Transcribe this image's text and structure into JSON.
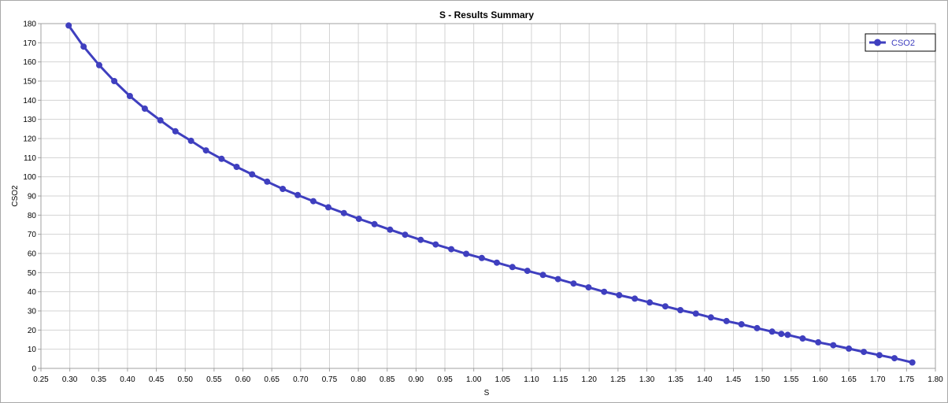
{
  "chart_data": {
    "type": "line",
    "title": "S - Results Summary",
    "xlabel": "S",
    "ylabel": "CSO2",
    "xlim": [
      0.25,
      1.8
    ],
    "ylim": [
      0,
      180
    ],
    "x_ticks": [
      "0.25",
      "0.30",
      "0.35",
      "0.40",
      "0.45",
      "0.50",
      "0.55",
      "0.60",
      "0.65",
      "0.70",
      "0.75",
      "0.80",
      "0.85",
      "0.90",
      "0.95",
      "1.00",
      "1.05",
      "1.10",
      "1.15",
      "1.20",
      "1.25",
      "1.30",
      "1.35",
      "1.40",
      "1.45",
      "1.50",
      "1.55",
      "1.60",
      "1.65",
      "1.70",
      "1.75",
      "1.80"
    ],
    "y_ticks": [
      "0",
      "10",
      "20",
      "30",
      "40",
      "50",
      "60",
      "70",
      "80",
      "90",
      "100",
      "110",
      "120",
      "130",
      "140",
      "150",
      "160",
      "170",
      "180"
    ],
    "grid": true,
    "legend_position": "top-right",
    "series_color": "#3f3fbf",
    "series": [
      {
        "name": "CSO2",
        "x": [
          0.298,
          0.324,
          0.351,
          0.377,
          0.404,
          0.43,
          0.457,
          0.483,
          0.51,
          0.536,
          0.563,
          0.589,
          0.616,
          0.642,
          0.669,
          0.695,
          0.722,
          0.748,
          0.775,
          0.801,
          0.828,
          0.855,
          0.881,
          0.908,
          0.934,
          0.961,
          0.987,
          1.014,
          1.04,
          1.067,
          1.093,
          1.12,
          1.146,
          1.173,
          1.199,
          1.226,
          1.252,
          1.279,
          1.305,
          1.332,
          1.358,
          1.385,
          1.411,
          1.438,
          1.464,
          1.491,
          1.517,
          1.533,
          1.544,
          1.57,
          1.597,
          1.623,
          1.65,
          1.676,
          1.703,
          1.729,
          1.76
        ],
        "values": [
          179,
          168,
          158.3,
          150,
          142.2,
          135.6,
          129.5,
          123.8,
          118.8,
          113.8,
          109.4,
          105.2,
          101.3,
          97.5,
          93.7,
          90.5,
          87.3,
          84.1,
          81.1,
          78.1,
          75.3,
          72.4,
          69.8,
          67.1,
          64.7,
          62.2,
          59.8,
          57.6,
          55.2,
          52.9,
          50.9,
          48.8,
          46.6,
          44.3,
          42.3,
          40.0,
          38.2,
          36.4,
          34.4,
          32.4,
          30.4,
          28.6,
          26.6,
          24.7,
          23.0,
          21.0,
          19.2,
          18.0,
          17.5,
          15.6,
          13.6,
          12.1,
          10.3,
          8.6,
          6.9,
          5.3,
          3.1
        ]
      }
    ]
  }
}
